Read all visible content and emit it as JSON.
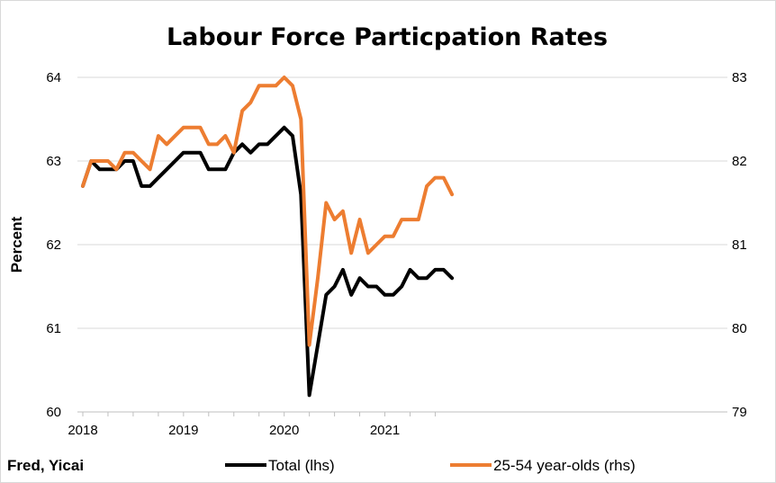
{
  "chart_data": {
    "type": "line",
    "title": "Labour Force Particpation Rates",
    "ylabel": "Percent",
    "y2label": "",
    "xlabel": "",
    "credit": "Fred, Yicai",
    "ylim": [
      60,
      64
    ],
    "y2lim": [
      79,
      83
    ],
    "yticks": [
      "60",
      "61",
      "62",
      "63",
      "64"
    ],
    "y2ticks": [
      "79",
      "80",
      "81",
      "82",
      "83"
    ],
    "xticks": [
      "2018",
      "2019",
      "2020",
      "2021"
    ],
    "x_start": "2018-01",
    "grid": true,
    "legend_placement": "bottom",
    "series": [
      {
        "name": "Total (lhs)",
        "axis": "left",
        "color": "#000000",
        "values": [
          62.7,
          63.0,
          62.9,
          62.9,
          62.9,
          63.0,
          63.0,
          62.7,
          62.7,
          62.8,
          62.9,
          63.0,
          63.1,
          63.1,
          63.1,
          62.9,
          62.9,
          62.9,
          63.1,
          63.2,
          63.1,
          63.2,
          63.2,
          63.3,
          63.4,
          63.3,
          62.6,
          60.2,
          60.8,
          61.4,
          61.5,
          61.7,
          61.4,
          61.6,
          61.5,
          61.5,
          61.4,
          61.4,
          61.5,
          61.7,
          61.6,
          61.6,
          61.7,
          61.7,
          61.6
        ]
      },
      {
        "name": "25-54 year-olds (rhs)",
        "axis": "right",
        "color": "#ed7d31",
        "values": [
          81.7,
          82.0,
          82.0,
          82.0,
          81.9,
          82.1,
          82.1,
          82.0,
          81.9,
          82.3,
          82.2,
          82.3,
          82.4,
          82.4,
          82.4,
          82.2,
          82.2,
          82.3,
          82.1,
          82.6,
          82.7,
          82.9,
          82.9,
          82.9,
          83.0,
          82.9,
          82.5,
          79.8,
          80.6,
          81.5,
          81.3,
          81.4,
          80.9,
          81.3,
          80.9,
          81.0,
          81.1,
          81.1,
          81.3,
          81.3,
          81.3,
          81.7,
          81.8,
          81.8,
          81.6
        ]
      }
    ]
  }
}
